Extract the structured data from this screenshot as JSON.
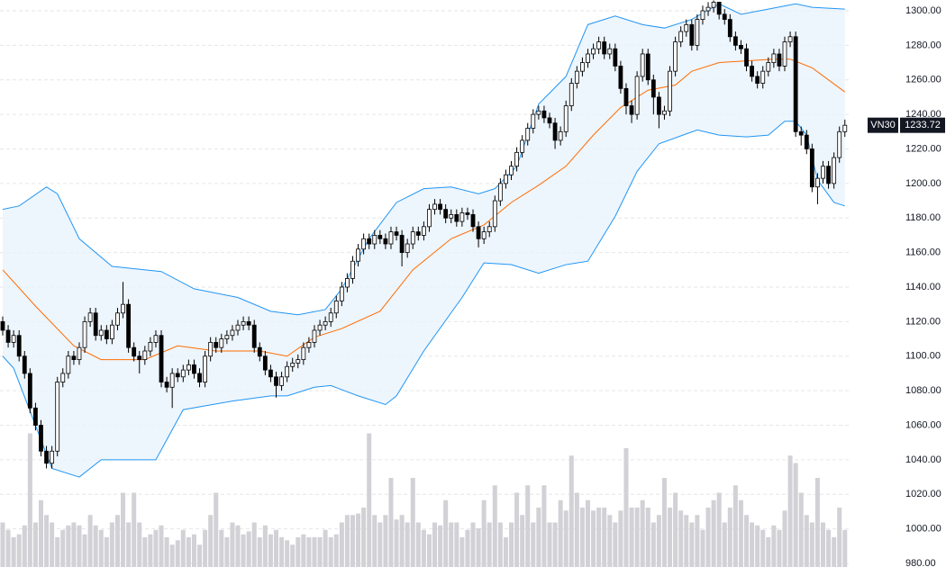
{
  "chart_data": {
    "type": "candlestick",
    "symbol": "VN30",
    "ylim": [
      977.92,
      1306.25
    ],
    "yticks": [
      {
        "value": 980,
        "label": "980.00"
      },
      {
        "value": 1000,
        "label": "1000.00"
      },
      {
        "value": 1020,
        "label": "1020.00"
      },
      {
        "value": 1040,
        "label": "1040.00"
      },
      {
        "value": 1060,
        "label": "1060.00"
      },
      {
        "value": 1080,
        "label": "1080.00"
      },
      {
        "value": 1100,
        "label": "1100.00"
      },
      {
        "value": 1120,
        "label": "1120.00"
      },
      {
        "value": 1140,
        "label": "1140.00"
      },
      {
        "value": 1160,
        "label": "1160.00"
      },
      {
        "value": 1180,
        "label": "1180.00"
      },
      {
        "value": 1200,
        "label": "1200.00"
      },
      {
        "value": 1220,
        "label": "1220.00"
      },
      {
        "value": 1240,
        "label": "1240.00"
      },
      {
        "value": 1260,
        "label": "1260.00"
      },
      {
        "value": 1280,
        "label": "1280.00"
      },
      {
        "value": 1300,
        "label": "1300.00"
      }
    ],
    "grid": true,
    "up_color": "#ffffff",
    "down_color": "#000000",
    "volume_color": "#d1d1d6",
    "open": [
      1120,
      1115,
      1108,
      1112,
      1100,
      1090,
      1070,
      1060,
      1045,
      1038,
      1045,
      1085,
      1090,
      1100,
      1098,
      1105,
      1120,
      1125,
      1112,
      1115,
      1110,
      1118,
      1125,
      1130,
      1105,
      1100,
      1098,
      1103,
      1108,
      1112,
      1085,
      1082,
      1090,
      1088,
      1092,
      1095,
      1090,
      1085,
      1100,
      1108,
      1105,
      1110,
      1112,
      1115,
      1118,
      1120,
      1118,
      1105,
      1100,
      1092,
      1088,
      1083,
      1088,
      1094,
      1096,
      1098,
      1105,
      1108,
      1115,
      1118,
      1120,
      1125,
      1132,
      1140,
      1145,
      1155,
      1162,
      1168,
      1165,
      1170,
      1168,
      1165,
      1172,
      1170,
      1160,
      1165,
      1172,
      1170,
      1175,
      1185,
      1188,
      1185,
      1180,
      1182,
      1178,
      1183,
      1182,
      1175,
      1168,
      1172,
      1175,
      1190,
      1200,
      1205,
      1210,
      1218,
      1225,
      1232,
      1240,
      1242,
      1238,
      1235,
      1225,
      1230,
      1245,
      1258,
      1265,
      1270,
      1275,
      1278,
      1282,
      1275,
      1278,
      1268,
      1255,
      1245,
      1240,
      1262,
      1275,
      1260,
      1250,
      1240,
      1242,
      1265,
      1282,
      1288,
      1292,
      1280,
      1295,
      1300,
      1302,
      1305,
      1298,
      1295,
      1285,
      1280,
      1278,
      1268,
      1262,
      1258,
      1265,
      1270,
      1275,
      1268,
      1282,
      1285,
      1230,
      1228,
      1220,
      1198,
      1203,
      1210,
      1200,
      1215,
      1230
    ],
    "high": [
      1123,
      1118,
      1115,
      1115,
      1103,
      1093,
      1073,
      1063,
      1048,
      1048,
      1088,
      1093,
      1103,
      1103,
      1108,
      1123,
      1128,
      1128,
      1118,
      1118,
      1121,
      1128,
      1143,
      1133,
      1108,
      1103,
      1106,
      1111,
      1115,
      1115,
      1088,
      1093,
      1093,
      1095,
      1098,
      1098,
      1093,
      1103,
      1111,
      1111,
      1113,
      1115,
      1118,
      1121,
      1123,
      1123,
      1121,
      1108,
      1103,
      1095,
      1091,
      1091,
      1097,
      1099,
      1101,
      1108,
      1111,
      1118,
      1121,
      1123,
      1128,
      1135,
      1143,
      1148,
      1158,
      1165,
      1171,
      1171,
      1173,
      1173,
      1171,
      1175,
      1175,
      1173,
      1168,
      1175,
      1175,
      1178,
      1188,
      1191,
      1191,
      1188,
      1185,
      1185,
      1186,
      1186,
      1185,
      1178,
      1175,
      1178,
      1193,
      1203,
      1208,
      1213,
      1221,
      1228,
      1235,
      1243,
      1245,
      1245,
      1241,
      1238,
      1233,
      1248,
      1261,
      1268,
      1273,
      1278,
      1281,
      1285,
      1285,
      1281,
      1281,
      1271,
      1258,
      1248,
      1265,
      1278,
      1278,
      1263,
      1253,
      1245,
      1268,
      1285,
      1291,
      1295,
      1295,
      1298,
      1303,
      1305,
      1306,
      1305,
      1301,
      1298,
      1288,
      1283,
      1281,
      1271,
      1265,
      1268,
      1273,
      1278,
      1278,
      1285,
      1288,
      1288,
      1233,
      1231,
      1223,
      1206,
      1213,
      1213,
      1218,
      1233,
      1237
    ],
    "low": [
      1112,
      1105,
      1105,
      1097,
      1087,
      1067,
      1057,
      1042,
      1035,
      1035,
      1042,
      1082,
      1087,
      1095,
      1095,
      1102,
      1117,
      1109,
      1109,
      1107,
      1107,
      1115,
      1122,
      1102,
      1097,
      1090,
      1095,
      1100,
      1105,
      1082,
      1079,
      1070,
      1085,
      1085,
      1089,
      1087,
      1082,
      1082,
      1097,
      1102,
      1102,
      1107,
      1109,
      1112,
      1115,
      1115,
      1102,
      1097,
      1089,
      1085,
      1076,
      1080,
      1085,
      1091,
      1093,
      1095,
      1102,
      1105,
      1112,
      1115,
      1117,
      1122,
      1129,
      1137,
      1142,
      1152,
      1159,
      1162,
      1162,
      1165,
      1162,
      1162,
      1167,
      1152,
      1157,
      1162,
      1167,
      1167,
      1172,
      1182,
      1182,
      1177,
      1177,
      1175,
      1175,
      1179,
      1172,
      1163,
      1165,
      1169,
      1172,
      1187,
      1197,
      1202,
      1207,
      1215,
      1222,
      1229,
      1237,
      1235,
      1232,
      1220,
      1222,
      1227,
      1242,
      1255,
      1262,
      1267,
      1272,
      1275,
      1272,
      1272,
      1265,
      1252,
      1240,
      1235,
      1237,
      1259,
      1257,
      1240,
      1232,
      1237,
      1239,
      1262,
      1279,
      1285,
      1277,
      1277,
      1292,
      1297,
      1299,
      1295,
      1292,
      1282,
      1277,
      1275,
      1265,
      1259,
      1255,
      1255,
      1262,
      1267,
      1265,
      1265,
      1279,
      1227,
      1222,
      1217,
      1195,
      1188,
      1200,
      1197,
      1197,
      1212,
      1227
    ],
    "close": [
      1115,
      1108,
      1112,
      1100,
      1090,
      1070,
      1060,
      1045,
      1038,
      1045,
      1085,
      1090,
      1100,
      1098,
      1105,
      1120,
      1125,
      1112,
      1115,
      1110,
      1118,
      1125,
      1130,
      1105,
      1100,
      1098,
      1103,
      1108,
      1112,
      1085,
      1082,
      1090,
      1088,
      1092,
      1095,
      1090,
      1085,
      1100,
      1108,
      1105,
      1110,
      1112,
      1115,
      1118,
      1120,
      1118,
      1105,
      1100,
      1092,
      1088,
      1083,
      1088,
      1094,
      1096,
      1098,
      1105,
      1108,
      1115,
      1118,
      1120,
      1125,
      1132,
      1140,
      1145,
      1155,
      1162,
      1168,
      1165,
      1170,
      1168,
      1165,
      1172,
      1170,
      1160,
      1165,
      1172,
      1170,
      1175,
      1185,
      1188,
      1185,
      1180,
      1182,
      1178,
      1183,
      1182,
      1175,
      1168,
      1172,
      1175,
      1190,
      1200,
      1205,
      1210,
      1218,
      1225,
      1232,
      1240,
      1242,
      1238,
      1235,
      1225,
      1230,
      1245,
      1258,
      1265,
      1270,
      1275,
      1278,
      1282,
      1275,
      1278,
      1268,
      1255,
      1245,
      1240,
      1262,
      1275,
      1260,
      1250,
      1240,
      1242,
      1265,
      1282,
      1288,
      1292,
      1280,
      1295,
      1300,
      1302,
      1305,
      1298,
      1295,
      1285,
      1280,
      1278,
      1268,
      1262,
      1258,
      1265,
      1270,
      1275,
      1268,
      1282,
      1285,
      1230,
      1228,
      1220,
      1198,
      1203,
      1210,
      1200,
      1215,
      1230,
      1233.72
    ],
    "volume_ylim": [
      0,
      100
    ],
    "volume": [
      30,
      25,
      20,
      22,
      28,
      90,
      30,
      45,
      35,
      30,
      20,
      25,
      28,
      30,
      28,
      22,
      35,
      28,
      25,
      20,
      30,
      35,
      50,
      30,
      50,
      30,
      20,
      22,
      25,
      28,
      20,
      15,
      18,
      25,
      20,
      22,
      15,
      25,
      35,
      50,
      25,
      20,
      30,
      28,
      22,
      24,
      30,
      20,
      28,
      22,
      25,
      20,
      18,
      15,
      20,
      22,
      20,
      20,
      20,
      25,
      20,
      22,
      30,
      35,
      35,
      36,
      40,
      90,
      35,
      30,
      35,
      60,
      32,
      35,
      30,
      60,
      30,
      25,
      22,
      30,
      28,
      45,
      30,
      30,
      20,
      25,
      30,
      26,
      45,
      30,
      55,
      30,
      20,
      30,
      50,
      35,
      55,
      30,
      40,
      55,
      30,
      30,
      45,
      38,
      75,
      50,
      40,
      45,
      38,
      40,
      40,
      35,
      30,
      38,
      80,
      40,
      40,
      45,
      40,
      30,
      35,
      60,
      40,
      50,
      38,
      35,
      30,
      35,
      25,
      40,
      45,
      50,
      30,
      40,
      55,
      45,
      35,
      30,
      28,
      25,
      20,
      28,
      25,
      38,
      75,
      70,
      50,
      35,
      30,
      60,
      30,
      25,
      20,
      40,
      25
    ],
    "bollinger": {
      "fill": "#e8f3fd",
      "upper": {
        "color": "#2196f3",
        "x": [
          0,
          3,
          8,
          10,
          14,
          20,
          29,
          35,
          43,
          49,
          54,
          59,
          62,
          67,
          72,
          77,
          82,
          87,
          90,
          94,
          98,
          103,
          107,
          112,
          117,
          121,
          126,
          131,
          135,
          140,
          145,
          148,
          154
        ],
        "values": [
          1185,
          1187,
          1198,
          1194,
          1168,
          1152,
          1149,
          1139,
          1134,
          1126,
          1124,
          1127,
          1139,
          1168,
          1189,
          1197,
          1198,
          1194,
          1197,
          1210,
          1246,
          1262,
          1292,
          1297,
          1292,
          1290,
          1295,
          1304,
          1298,
          1301,
          1304,
          1302,
          1301
        ]
      },
      "middle": {
        "color": "#ff6d00",
        "x": [
          0,
          6,
          13,
          18,
          26,
          32,
          39,
          47,
          52,
          57,
          62,
          69,
          75,
          82,
          88,
          93,
          98,
          103,
          108,
          113,
          118,
          123,
          126,
          131,
          136,
          141,
          144,
          148,
          154
        ],
        "values": [
          1150,
          1129,
          1106,
          1098,
          1098,
          1106,
          1103,
          1103,
          1100,
          1111,
          1116,
          1126,
          1150,
          1168,
          1176,
          1189,
          1199,
          1210,
          1228,
          1244,
          1254,
          1257,
          1265,
          1270,
          1271,
          1272,
          1272,
          1267,
          1253
        ]
      },
      "lower": {
        "color": "#2196f3",
        "x": [
          0,
          2,
          9,
          14,
          18,
          28,
          33,
          42,
          49,
          52,
          57,
          60,
          65,
          70,
          72,
          77,
          84,
          88,
          93,
          98,
          103,
          107,
          112,
          116,
          120,
          127,
          131,
          136,
          140,
          143,
          145,
          147,
          149,
          152,
          154
        ],
        "values": [
          1100,
          1093,
          1035,
          1030,
          1040,
          1040,
          1069,
          1074,
          1077,
          1077,
          1082,
          1083,
          1077,
          1072,
          1077,
          1103,
          1134,
          1154,
          1153,
          1148,
          1153,
          1155,
          1181,
          1207,
          1223,
          1231,
          1228,
          1227,
          1228,
          1236,
          1236,
          1228,
          1202,
          1189,
          1187
        ]
      }
    }
  }
}
